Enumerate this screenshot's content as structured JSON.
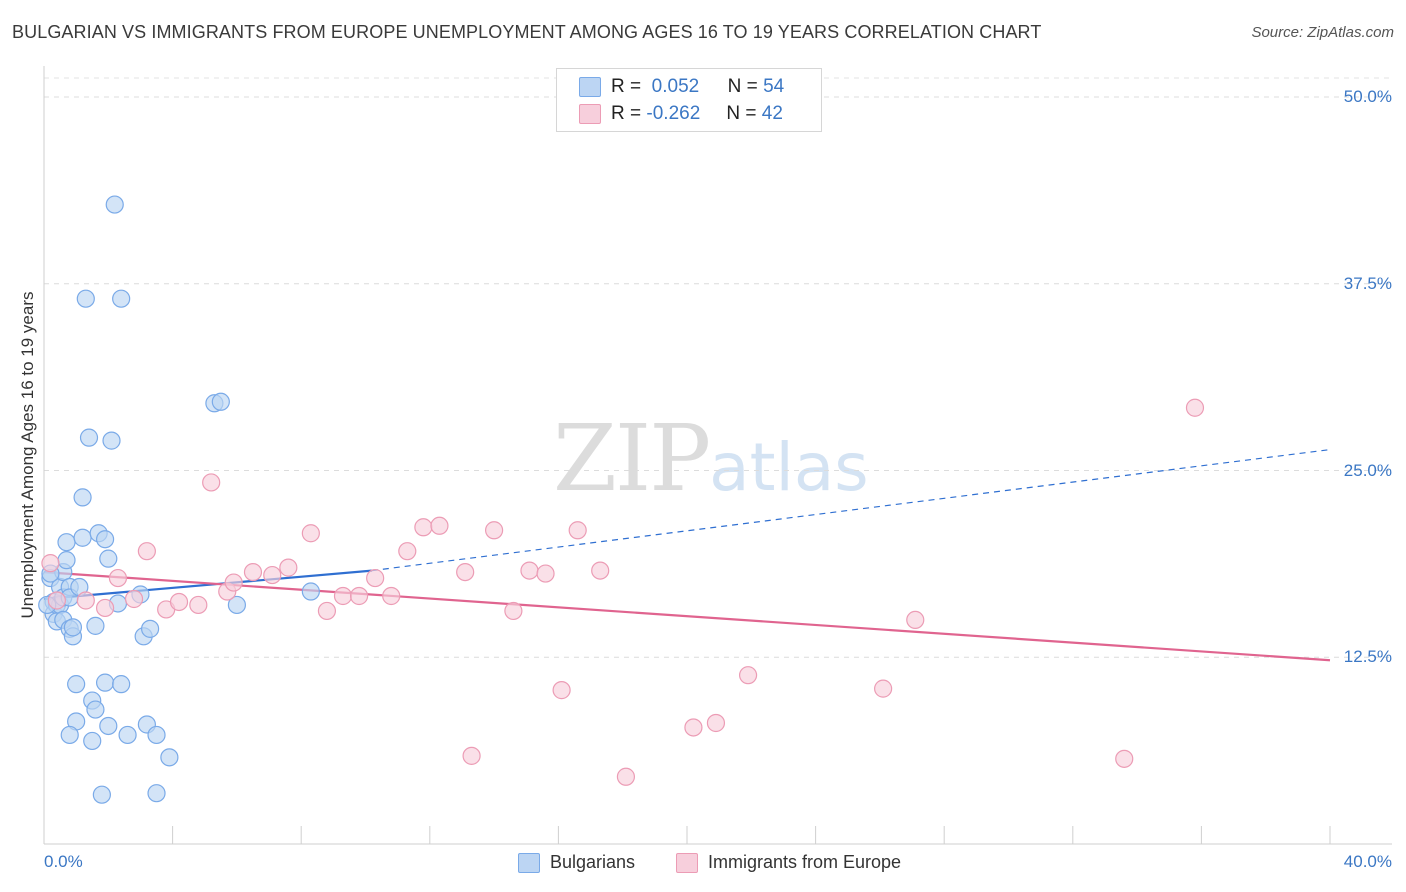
{
  "chart_data": {
    "type": "scatter",
    "title": "BULGARIAN VS IMMIGRANTS FROM EUROPE UNEMPLOYMENT AMONG AGES 16 TO 19 YEARS CORRELATION CHART",
    "source": "Source: ZipAtlas.com",
    "xlabel": "",
    "ylabel": "Unemployment Among Ages 16 to 19 years",
    "xlim": [
      0,
      40
    ],
    "ylim": [
      0,
      50
    ],
    "x_tick_labels": [
      "0.0%",
      "40.0%"
    ],
    "y_ticks": [
      {
        "value": 12.5,
        "label": "12.5%"
      },
      {
        "value": 25.0,
        "label": "25.0%"
      },
      {
        "value": 37.5,
        "label": "37.5%"
      },
      {
        "value": 50.0,
        "label": "50.0%"
      }
    ],
    "watermark": {
      "part1": "ZIP",
      "part2": "atlas"
    },
    "legend_top": [
      {
        "r_label": "R =",
        "r_value": "0.052",
        "n_label": "N =",
        "n_value": "54"
      },
      {
        "r_label": "R =",
        "r_value": "-0.262",
        "n_label": "N =",
        "n_value": "42"
      }
    ],
    "series": [
      {
        "name": "Bulgarians",
        "color": "#7aaae8",
        "fill": "#bcd5f3",
        "trend": {
          "x1": 0,
          "y1": 16.4,
          "x2": 10.2,
          "y2": 18.3,
          "dash_x2": 40,
          "dash_y2": 26.4,
          "color": "#2f6fd1"
        },
        "points": [
          [
            0.2,
            17.8
          ],
          [
            0.3,
            16.2
          ],
          [
            0.3,
            15.4
          ],
          [
            0.4,
            16.0
          ],
          [
            0.4,
            14.9
          ],
          [
            0.5,
            17.2
          ],
          [
            0.5,
            16.0
          ],
          [
            0.6,
            18.2
          ],
          [
            0.6,
            16.5
          ],
          [
            0.6,
            15.0
          ],
          [
            0.7,
            19.0
          ],
          [
            0.7,
            20.2
          ],
          [
            0.8,
            17.2
          ],
          [
            0.8,
            16.5
          ],
          [
            0.8,
            14.4
          ],
          [
            0.9,
            13.9
          ],
          [
            0.9,
            14.5
          ],
          [
            1.0,
            10.7
          ],
          [
            1.0,
            8.2
          ],
          [
            0.8,
            7.3
          ],
          [
            1.1,
            17.2
          ],
          [
            1.2,
            20.5
          ],
          [
            1.2,
            23.2
          ],
          [
            1.3,
            36.5
          ],
          [
            1.4,
            27.2
          ],
          [
            1.5,
            6.9
          ],
          [
            1.5,
            9.6
          ],
          [
            1.6,
            9.0
          ],
          [
            1.6,
            14.6
          ],
          [
            1.7,
            20.8
          ],
          [
            1.8,
            3.3
          ],
          [
            1.9,
            20.4
          ],
          [
            1.9,
            10.8
          ],
          [
            2.0,
            19.1
          ],
          [
            2.0,
            7.9
          ],
          [
            2.1,
            27.0
          ],
          [
            2.2,
            42.8
          ],
          [
            2.3,
            16.1
          ],
          [
            2.4,
            10.7
          ],
          [
            2.4,
            36.5
          ],
          [
            2.6,
            7.3
          ],
          [
            3.0,
            16.7
          ],
          [
            3.1,
            13.9
          ],
          [
            3.2,
            8.0
          ],
          [
            3.3,
            14.4
          ],
          [
            3.5,
            7.3
          ],
          [
            3.5,
            3.4
          ],
          [
            3.9,
            5.8
          ],
          [
            5.3,
            29.5
          ],
          [
            5.5,
            29.6
          ],
          [
            6.0,
            16.0
          ],
          [
            8.3,
            16.9
          ],
          [
            0.1,
            16.0
          ],
          [
            0.2,
            18.1
          ]
        ]
      },
      {
        "name": "Immigrants from Europe",
        "color": "#ec9cb5",
        "fill": "#f7cfdc",
        "trend": {
          "x1": 0,
          "y1": 18.2,
          "x2": 40,
          "y2": 12.3,
          "color": "#e0648f"
        },
        "points": [
          [
            0.2,
            18.8
          ],
          [
            0.4,
            16.3
          ],
          [
            1.3,
            16.3
          ],
          [
            1.9,
            15.8
          ],
          [
            2.3,
            17.8
          ],
          [
            2.8,
            16.4
          ],
          [
            3.2,
            19.6
          ],
          [
            3.8,
            15.7
          ],
          [
            4.2,
            16.2
          ],
          [
            4.8,
            16.0
          ],
          [
            5.2,
            24.2
          ],
          [
            5.7,
            16.9
          ],
          [
            5.9,
            17.5
          ],
          [
            6.5,
            18.2
          ],
          [
            7.1,
            18.0
          ],
          [
            7.6,
            18.5
          ],
          [
            8.3,
            20.8
          ],
          [
            8.8,
            15.6
          ],
          [
            9.3,
            16.6
          ],
          [
            9.8,
            16.6
          ],
          [
            10.3,
            17.8
          ],
          [
            10.8,
            16.6
          ],
          [
            11.3,
            19.6
          ],
          [
            11.8,
            21.2
          ],
          [
            12.3,
            21.3
          ],
          [
            13.1,
            18.2
          ],
          [
            13.3,
            5.9
          ],
          [
            14.0,
            21.0
          ],
          [
            14.6,
            15.6
          ],
          [
            15.1,
            18.3
          ],
          [
            15.6,
            18.1
          ],
          [
            16.1,
            10.3
          ],
          [
            16.6,
            21.0
          ],
          [
            17.3,
            18.3
          ],
          [
            18.1,
            4.5
          ],
          [
            20.2,
            7.8
          ],
          [
            20.9,
            8.1
          ],
          [
            21.9,
            11.3
          ],
          [
            26.1,
            10.4
          ],
          [
            27.1,
            15.0
          ],
          [
            33.6,
            5.7
          ],
          [
            35.8,
            29.2
          ]
        ]
      }
    ]
  }
}
